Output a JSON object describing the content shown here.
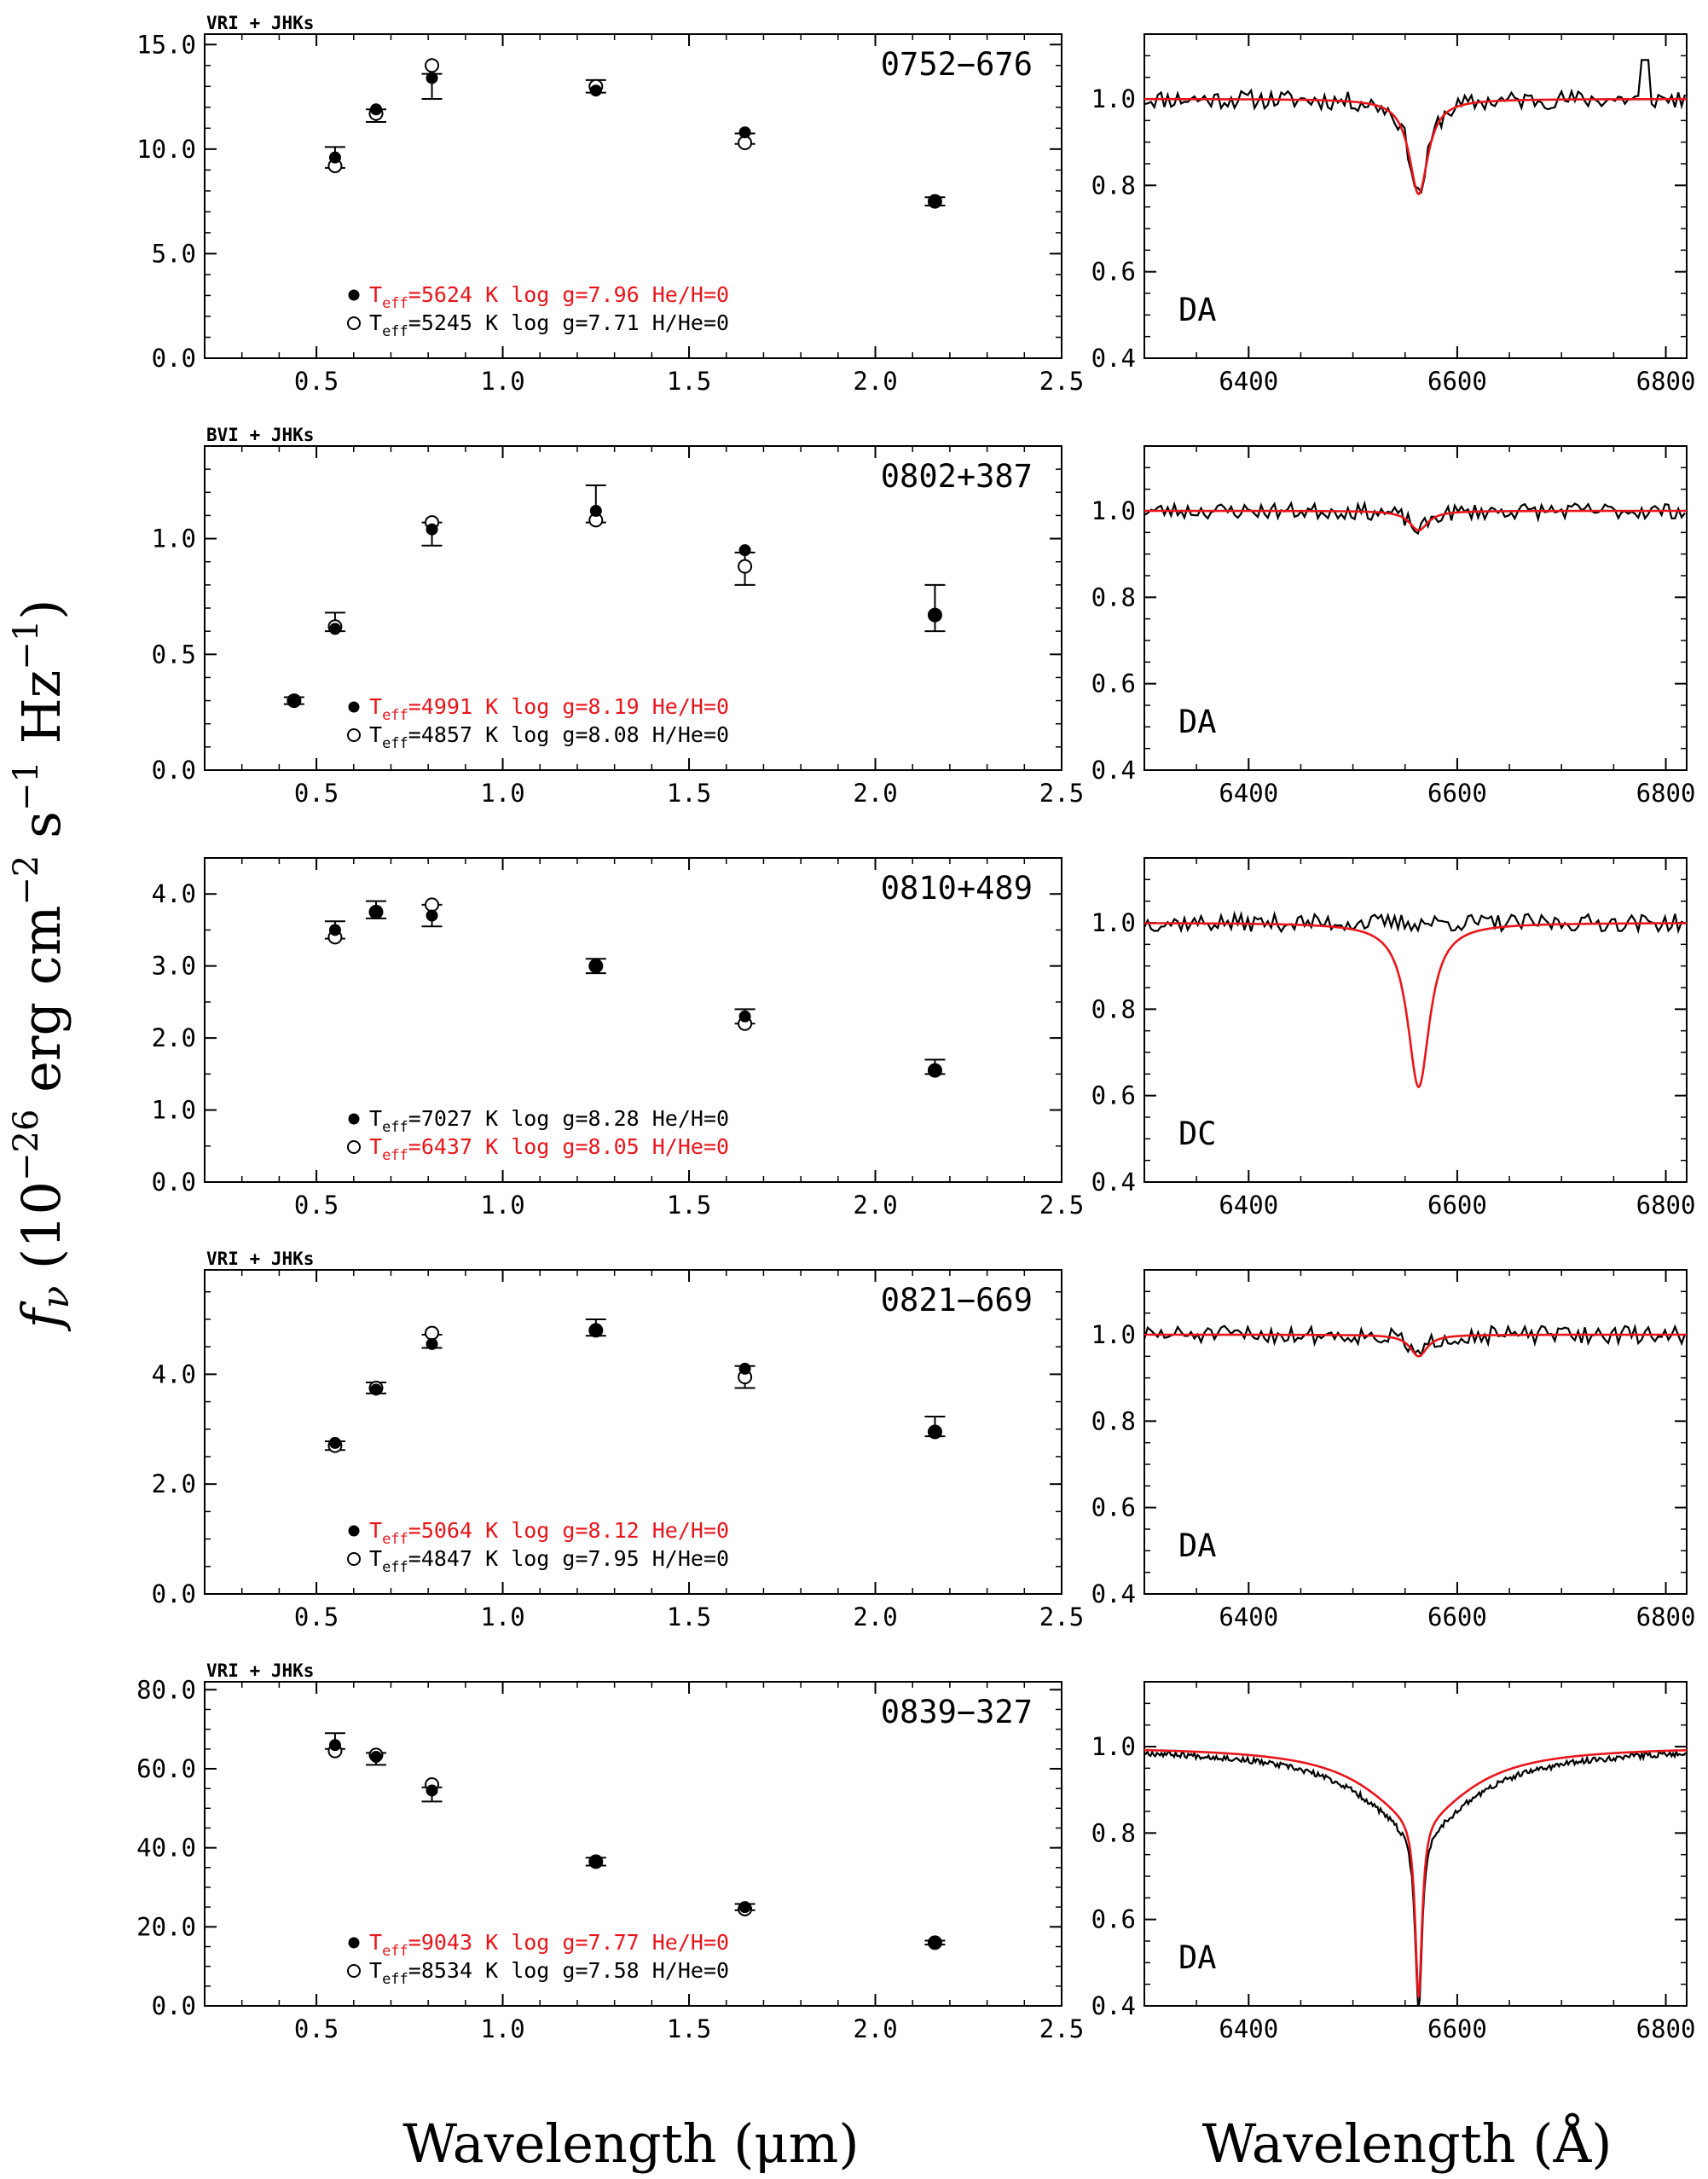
{
  "figure": {
    "ylabel_parts": [
      "f",
      "ν",
      " (10",
      "−26",
      " erg cm",
      "−2",
      " s",
      "−1",
      " Hz",
      "−1",
      ")"
    ],
    "xlabel_left": "Wavelength (μm)",
    "xlabel_right": "Wavelength (Å)"
  },
  "colors": {
    "model_red": "#e8151b",
    "data_black": "#000000"
  },
  "chart_data": [
    {
      "type": "scatter",
      "panel": "sed",
      "object": "0752−676",
      "filters": "VRI + JHKs",
      "xlim": [
        0.2,
        2.5
      ],
      "ylim": [
        0,
        15.5
      ],
      "xticks": [
        "0.5",
        "1.0",
        "1.5",
        "2.0",
        "2.5"
      ],
      "xtick_values": [
        0.5,
        1.0,
        1.5,
        2.0,
        2.5
      ],
      "yticks": [
        "0.0",
        "5.0",
        "10.0",
        "15.0"
      ],
      "ytick_values": [
        0,
        5,
        10,
        15
      ],
      "observed": {
        "x": [
          0.55,
          0.66,
          0.81,
          1.25,
          1.65,
          2.16
        ],
        "y": [
          9.6,
          11.6,
          13.0,
          13.0,
          10.5,
          7.5
        ],
        "err": [
          0.5,
          0.3,
          0.6,
          0.3,
          0.25,
          0.2
        ]
      },
      "model_he_h": {
        "x": [
          0.55,
          0.66,
          0.81,
          1.25,
          1.65,
          2.16
        ],
        "y": [
          9.6,
          11.9,
          13.4,
          12.8,
          10.8,
          7.5
        ]
      },
      "model_h_he": {
        "x": [
          0.55,
          0.66,
          0.81,
          1.25,
          1.65,
          2.16
        ],
        "y": [
          9.2,
          11.7,
          14.0,
          13.0,
          10.3,
          7.5
        ]
      },
      "legend": {
        "filled": {
          "teff": "5624 K",
          "logg": "log g=7.96",
          "comp": "He/H=0",
          "color": "#e8151b"
        },
        "open": {
          "teff": "5245 K",
          "logg": "log g=7.71",
          "comp": "H/He=0",
          "color": "#000000"
        }
      }
    },
    {
      "type": "line",
      "panel": "spectrum",
      "object": "0752−676",
      "spectral_type": "DA",
      "xlim": [
        6300,
        6820
      ],
      "ylim": [
        0.4,
        1.15
      ],
      "xticks": [
        "6400",
        "6600",
        "6800"
      ],
      "xtick_values": [
        6400,
        6600,
        6800
      ],
      "yticks": [
        "0.4",
        "0.6",
        "0.8",
        "1.0"
      ],
      "ytick_values": [
        0.4,
        0.6,
        0.8,
        1.0
      ],
      "line_depth": 0.22,
      "line_width": 11,
      "wing_depth": 0,
      "wing_width": 0,
      "noise": 0.013,
      "seed": 11,
      "spike": {
        "x": 6780,
        "y": 1.09
      }
    },
    {
      "type": "scatter",
      "panel": "sed",
      "object": "0802+387",
      "filters": "BVI + JHKs",
      "xlim": [
        0.2,
        2.5
      ],
      "ylim": [
        0,
        1.4
      ],
      "xticks": [
        "0.5",
        "1.0",
        "1.5",
        "2.0",
        "2.5"
      ],
      "xtick_values": [
        0.5,
        1.0,
        1.5,
        2.0,
        2.5
      ],
      "yticks": [
        "0.0",
        "0.5",
        "1.0"
      ],
      "ytick_values": [
        0,
        0.5,
        1.0
      ],
      "observed": {
        "x": [
          0.44,
          0.55,
          0.81,
          1.25,
          1.65,
          2.16
        ],
        "y": [
          0.3,
          0.64,
          1.02,
          1.15,
          0.87,
          0.7
        ],
        "err": [
          0.015,
          0.04,
          0.05,
          0.08,
          0.07,
          0.1
        ]
      },
      "model_he_h": {
        "x": [
          0.44,
          0.55,
          0.81,
          1.25,
          1.65,
          2.16
        ],
        "y": [
          0.3,
          0.61,
          1.04,
          1.12,
          0.95,
          0.67
        ]
      },
      "model_h_he": {
        "x": [
          0.44,
          0.55,
          0.81,
          1.25,
          1.65,
          2.16
        ],
        "y": [
          0.3,
          0.62,
          1.07,
          1.08,
          0.88,
          0.67
        ]
      },
      "legend": {
        "filled": {
          "teff": "4991 K",
          "logg": "log g=8.19",
          "comp": "He/H=0",
          "color": "#e8151b"
        },
        "open": {
          "teff": "4857 K",
          "logg": "log g=8.08",
          "comp": "H/He=0",
          "color": "#000000"
        }
      }
    },
    {
      "type": "line",
      "panel": "spectrum",
      "object": "0802+387",
      "spectral_type": "DA",
      "xlim": [
        6300,
        6820
      ],
      "ylim": [
        0.4,
        1.15
      ],
      "xticks": [
        "6400",
        "6600",
        "6800"
      ],
      "xtick_values": [
        6400,
        6600,
        6800
      ],
      "yticks": [
        "0.4",
        "0.6",
        "0.8",
        "1.0"
      ],
      "ytick_values": [
        0.4,
        0.6,
        0.8,
        1.0
      ],
      "line_depth": 0.045,
      "line_width": 11,
      "wing_depth": 0,
      "wing_width": 0,
      "noise": 0.011,
      "seed": 23,
      "spike": null
    },
    {
      "type": "scatter",
      "panel": "sed",
      "object": "0810+489",
      "filters": "",
      "xlim": [
        0.2,
        2.5
      ],
      "ylim": [
        0,
        4.5
      ],
      "xticks": [
        "0.5",
        "1.0",
        "1.5",
        "2.0",
        "2.5"
      ],
      "xtick_values": [
        0.5,
        1.0,
        1.5,
        2.0,
        2.5
      ],
      "yticks": [
        "0.0",
        "1.0",
        "2.0",
        "3.0",
        "4.0"
      ],
      "ytick_values": [
        0,
        1,
        2,
        3,
        4
      ],
      "observed": {
        "x": [
          0.55,
          0.66,
          0.81,
          1.25,
          1.65,
          2.16
        ],
        "y": [
          3.5,
          3.78,
          3.7,
          3.0,
          2.3,
          1.6
        ],
        "err": [
          0.12,
          0.12,
          0.15,
          0.1,
          0.1,
          0.1
        ]
      },
      "model_he_h": {
        "x": [
          0.55,
          0.66,
          0.81,
          1.25,
          1.65,
          2.16
        ],
        "y": [
          3.5,
          3.75,
          3.7,
          3.0,
          2.3,
          1.55
        ]
      },
      "model_h_he": {
        "x": [
          0.55,
          0.66,
          0.81,
          1.25,
          1.65,
          2.16
        ],
        "y": [
          3.4,
          3.75,
          3.85,
          3.0,
          2.2,
          1.55
        ]
      },
      "legend": {
        "filled": {
          "teff": "7027 K",
          "logg": "log g=8.28",
          "comp": "He/H=0",
          "color": "#000000"
        },
        "open": {
          "teff": "6437 K",
          "logg": "log g=8.05",
          "comp": "H/He=0",
          "color": "#e8151b"
        }
      }
    },
    {
      "type": "line",
      "panel": "spectrum",
      "object": "0810+489",
      "spectral_type": "DC",
      "xlim": [
        6300,
        6820
      ],
      "ylim": [
        0.4,
        1.15
      ],
      "xticks": [
        "6400",
        "6600",
        "6800"
      ],
      "xtick_values": [
        6400,
        6600,
        6800
      ],
      "yticks": [
        "0.4",
        "0.6",
        "0.8",
        "1.0"
      ],
      "ytick_values": [
        0.4,
        0.6,
        0.8,
        1.0
      ],
      "line_depth": 0.38,
      "line_width": 13,
      "wing_depth": 0,
      "wing_width": 0,
      "noise": 0.012,
      "seed": 37,
      "spike": null,
      "observed_flat": true
    },
    {
      "type": "scatter",
      "panel": "sed",
      "object": "0821−669",
      "filters": "VRI + JHKs",
      "xlim": [
        0.2,
        2.5
      ],
      "ylim": [
        0,
        5.9
      ],
      "xticks": [
        "0.5",
        "1.0",
        "1.5",
        "2.0",
        "2.5"
      ],
      "xtick_values": [
        0.5,
        1.0,
        1.5,
        2.0,
        2.5
      ],
      "yticks": [
        "0.0",
        "2.0",
        "4.0"
      ],
      "ytick_values": [
        0,
        2,
        4
      ],
      "observed": {
        "x": [
          0.55,
          0.66,
          0.81,
          1.25,
          1.65,
          2.16
        ],
        "y": [
          2.7,
          3.75,
          4.6,
          4.85,
          3.95,
          3.05
        ],
        "err": [
          0.08,
          0.1,
          0.12,
          0.15,
          0.2,
          0.18
        ]
      },
      "model_he_h": {
        "x": [
          0.55,
          0.66,
          0.81,
          1.25,
          1.65,
          2.16
        ],
        "y": [
          2.75,
          3.72,
          4.55,
          4.8,
          4.1,
          2.95
        ]
      },
      "model_h_he": {
        "x": [
          0.55,
          0.66,
          0.81,
          1.25,
          1.65,
          2.16
        ],
        "y": [
          2.7,
          3.75,
          4.75,
          4.8,
          3.95,
          2.95
        ]
      },
      "legend": {
        "filled": {
          "teff": "5064 K",
          "logg": "log g=8.12",
          "comp": "He/H=0",
          "color": "#e8151b"
        },
        "open": {
          "teff": "4847 K",
          "logg": "log g=7.95",
          "comp": "H/He=0",
          "color": "#000000"
        }
      }
    },
    {
      "type": "line",
      "panel": "spectrum",
      "object": "0821−669",
      "spectral_type": "DA",
      "xlim": [
        6300,
        6820
      ],
      "ylim": [
        0.4,
        1.15
      ],
      "xticks": [
        "6400",
        "6600",
        "6800"
      ],
      "xtick_values": [
        6400,
        6600,
        6800
      ],
      "yticks": [
        "0.4",
        "0.6",
        "0.8",
        "1.0"
      ],
      "ytick_values": [
        0.4,
        0.6,
        0.8,
        1.0
      ],
      "line_depth": 0.05,
      "line_width": 10,
      "wing_depth": 0,
      "wing_width": 0,
      "noise": 0.012,
      "seed": 51,
      "spike": null
    },
    {
      "type": "scatter",
      "panel": "sed",
      "object": "0839−327",
      "filters": "VRI + JHKs",
      "xlim": [
        0.2,
        2.5
      ],
      "ylim": [
        0,
        82
      ],
      "xticks": [
        "0.5",
        "1.0",
        "1.5",
        "2.0",
        "2.5"
      ],
      "xtick_values": [
        0.5,
        1.0,
        1.5,
        2.0,
        2.5
      ],
      "yticks": [
        "0.0",
        "20.0",
        "40.0",
        "60.0",
        "80.0"
      ],
      "ytick_values": [
        0,
        20,
        40,
        60,
        80
      ],
      "observed": {
        "x": [
          0.55,
          0.66,
          0.81,
          1.25,
          1.65,
          2.16
        ],
        "y": [
          67,
          62.5,
          53.5,
          36.5,
          25,
          16
        ],
        "err": [
          2.0,
          1.5,
          1.8,
          1.0,
          0.8,
          0.5
        ]
      },
      "model_he_h": {
        "x": [
          0.55,
          0.66,
          0.81,
          1.25,
          1.65,
          2.16
        ],
        "y": [
          66,
          63,
          54.5,
          36.5,
          25,
          16
        ]
      },
      "model_h_he": {
        "x": [
          0.55,
          0.66,
          0.81,
          1.25,
          1.65,
          2.16
        ],
        "y": [
          64.5,
          63.5,
          56,
          36.5,
          24.5,
          16
        ]
      },
      "legend": {
        "filled": {
          "teff": "9043 K",
          "logg": "log g=7.77",
          "comp": "He/H=0",
          "color": "#e8151b"
        },
        "open": {
          "teff": "8534 K",
          "logg": "log g=7.58",
          "comp": "H/He=0",
          "color": "#000000"
        }
      }
    },
    {
      "type": "line",
      "panel": "spectrum",
      "object": "0839−327",
      "spectral_type": "DA",
      "xlim": [
        6300,
        6820
      ],
      "ylim": [
        0.4,
        1.15
      ],
      "xticks": [
        "6400",
        "6600",
        "6800"
      ],
      "xtick_values": [
        6400,
        6600,
        6800
      ],
      "yticks": [
        "0.4",
        "0.6",
        "0.8",
        "1.0"
      ],
      "ytick_values": [
        0.4,
        0.6,
        0.8,
        1.0
      ],
      "line_depth": 0.42,
      "line_width": 4,
      "wing_depth": 0.16,
      "wing_width": 60,
      "noise": 0.004,
      "seed": 67,
      "spike": null,
      "observed_deeper": true
    }
  ]
}
